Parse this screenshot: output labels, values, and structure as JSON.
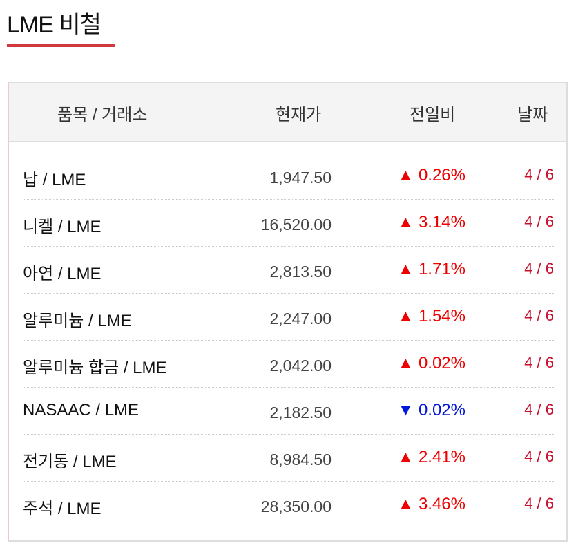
{
  "title": "LME 비철",
  "headers": {
    "item": "품목 / 거래소",
    "price": "현재가",
    "change": "전일비",
    "date": "날짜"
  },
  "colors": {
    "up": "#ee0000",
    "down": "#0016d8",
    "accent": "#d0393e"
  },
  "rows": [
    {
      "name": "납 / LME",
      "price": "1,947.50",
      "dir": "up",
      "change": "▲ 0.26%",
      "date": "4 / 6"
    },
    {
      "name": "니켈 / LME",
      "price": "16,520.00",
      "dir": "up",
      "change": "▲ 3.14%",
      "date": "4 / 6"
    },
    {
      "name": "아연 / LME",
      "price": "2,813.50",
      "dir": "up",
      "change": "▲ 1.71%",
      "date": "4 / 6"
    },
    {
      "name": "알루미늄 / LME",
      "price": "2,247.00",
      "dir": "up",
      "change": "▲ 1.54%",
      "date": "4 / 6"
    },
    {
      "name": "알루미늄 합금 / LME",
      "price": "2,042.00",
      "dir": "up",
      "change": "▲ 0.02%",
      "date": "4 / 6"
    },
    {
      "name": "NASAAC / LME",
      "price": "2,182.50",
      "dir": "down",
      "change": "▼ 0.02%",
      "date": "4 / 6"
    },
    {
      "name": "전기동 / LME",
      "price": "8,984.50",
      "dir": "up",
      "change": "▲ 2.41%",
      "date": "4 / 6"
    },
    {
      "name": "주석 / LME",
      "price": "28,350.00",
      "dir": "up",
      "change": "▲ 3.46%",
      "date": "4 / 6"
    }
  ]
}
